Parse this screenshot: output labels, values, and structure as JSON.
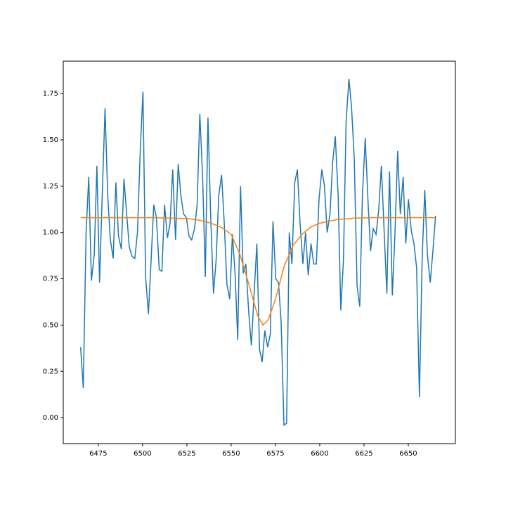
{
  "chart_data": {
    "type": "line",
    "series": [
      {
        "color": "#1f77b4",
        "x": [
          6465.0,
          6466.5,
          6468.1,
          6469.6,
          6471.1,
          6472.7,
          6474.2,
          6475.7,
          6477.2,
          6478.8,
          6480.3,
          6481.8,
          6483.4,
          6484.9,
          6486.4,
          6488.0,
          6489.5,
          6491.0,
          6492.5,
          6494.1,
          6495.6,
          6497.1,
          6498.7,
          6500.2,
          6501.7,
          6503.3,
          6504.8,
          6506.3,
          6507.8,
          6509.4,
          6510.9,
          6512.4,
          6514.0,
          6515.5,
          6517.0,
          6518.6,
          6520.1,
          6521.6,
          6523.1,
          6524.7,
          6526.2,
          6527.7,
          6529.3,
          6530.8,
          6532.3,
          6533.9,
          6535.4,
          6536.9,
          6538.4,
          6540.0,
          6541.5,
          6543.0,
          6544.6,
          6546.1,
          6547.6,
          6549.2,
          6550.7,
          6552.2,
          6553.7,
          6555.3,
          6556.8,
          6558.3,
          6559.9,
          6561.4,
          6562.9,
          6564.5,
          6566.0,
          6567.5,
          6569.0,
          6570.6,
          6572.1,
          6573.6,
          6575.2,
          6576.7,
          6578.2,
          6579.8,
          6581.3,
          6582.8,
          6584.3,
          6585.9,
          6587.4,
          6588.9,
          6590.5,
          6592.0,
          6593.5,
          6595.1,
          6596.6,
          6598.1,
          6599.6,
          6601.2,
          6602.7,
          6604.2,
          6605.8,
          6607.3,
          6608.8,
          6610.4,
          6611.9,
          6613.4,
          6614.9,
          6616.5,
          6618.0,
          6619.5,
          6621.1,
          6622.6,
          6624.1,
          6625.7,
          6627.2,
          6628.7,
          6630.2,
          6631.8,
          6633.3,
          6634.8,
          6636.4,
          6637.9,
          6639.4,
          6641.0,
          6642.5,
          6644.0,
          6645.5,
          6647.1,
          6648.6,
          6650.1,
          6651.7,
          6653.2,
          6654.7,
          6656.3,
          6657.8,
          6659.3,
          6660.8,
          6662.4,
          6663.9,
          6665.4
        ],
        "values": [
          0.38,
          0.16,
          1.0,
          1.3,
          0.74,
          0.88,
          1.36,
          0.73,
          1.2,
          1.67,
          1.2,
          0.96,
          0.86,
          1.27,
          0.98,
          0.91,
          1.29,
          1.1,
          0.92,
          0.87,
          0.86,
          1.0,
          1.45,
          1.76,
          0.76,
          0.56,
          0.85,
          1.15,
          1.08,
          0.8,
          0.79,
          1.15,
          0.97,
          1.05,
          1.34,
          0.96,
          1.37,
          1.2,
          1.1,
          1.08,
          0.98,
          0.96,
          1.02,
          1.15,
          1.64,
          1.3,
          0.76,
          1.62,
          1.1,
          0.67,
          0.85,
          1.2,
          1.31,
          1.05,
          0.72,
          0.64,
          0.99,
          0.78,
          0.42,
          1.25,
          0.78,
          0.83,
          0.57,
          0.39,
          0.66,
          0.94,
          0.37,
          0.3,
          0.47,
          0.38,
          0.45,
          1.06,
          0.75,
          0.73,
          0.52,
          -0.04,
          -0.03,
          1.0,
          0.83,
          1.27,
          1.34,
          1.05,
          0.83,
          1.0,
          0.77,
          0.94,
          0.83,
          0.83,
          1.18,
          1.34,
          1.25,
          1.0,
          1.1,
          1.38,
          1.52,
          1.2,
          0.58,
          0.85,
          1.6,
          1.83,
          1.67,
          1.4,
          0.71,
          0.6,
          1.2,
          1.51,
          1.18,
          0.9,
          1.02,
          0.99,
          1.12,
          1.36,
          1.0,
          0.67,
          1.33,
          0.66,
          1.0,
          1.44,
          1.1,
          1.3,
          0.94,
          1.18,
          1.01,
          0.94,
          0.81,
          0.11,
          0.85,
          1.23,
          0.88,
          0.73,
          0.9,
          1.09
        ]
      },
      {
        "color": "#ff7f0e",
        "x": [
          6465,
          6475,
          6485,
          6495,
          6505,
          6515,
          6525,
          6530,
          6535,
          6540,
          6545,
          6550,
          6555,
          6560,
          6565,
          6568,
          6571,
          6575,
          6580,
          6585,
          6590,
          6595,
          6600,
          6610,
          6620,
          6630,
          6640,
          6650,
          6665
        ],
        "values": [
          1.08,
          1.08,
          1.08,
          1.08,
          1.08,
          1.078,
          1.075,
          1.07,
          1.06,
          1.045,
          1.025,
          0.99,
          0.88,
          0.72,
          0.55,
          0.5,
          0.53,
          0.64,
          0.82,
          0.93,
          0.99,
          1.03,
          1.05,
          1.07,
          1.078,
          1.08,
          1.08,
          1.08,
          1.08
        ]
      }
    ],
    "xlim": [
      6455.2,
      6676.6
    ],
    "ylim": [
      -0.14,
      1.925
    ],
    "xticks": [
      6475,
      6500,
      6525,
      6550,
      6575,
      6600,
      6625,
      6650
    ],
    "yticks": [
      {
        "value": 0,
        "label": "0.00"
      },
      {
        "value": 0.25,
        "label": "0.25"
      },
      {
        "value": 0.5,
        "label": "0.50"
      },
      {
        "value": 0.75,
        "label": "0.75"
      },
      {
        "value": 1,
        "label": "1.00"
      },
      {
        "value": 1.25,
        "label": "1.25"
      },
      {
        "value": 1.5,
        "label": "1.50"
      },
      {
        "value": 1.75,
        "label": "1.75"
      }
    ],
    "grid": false
  }
}
